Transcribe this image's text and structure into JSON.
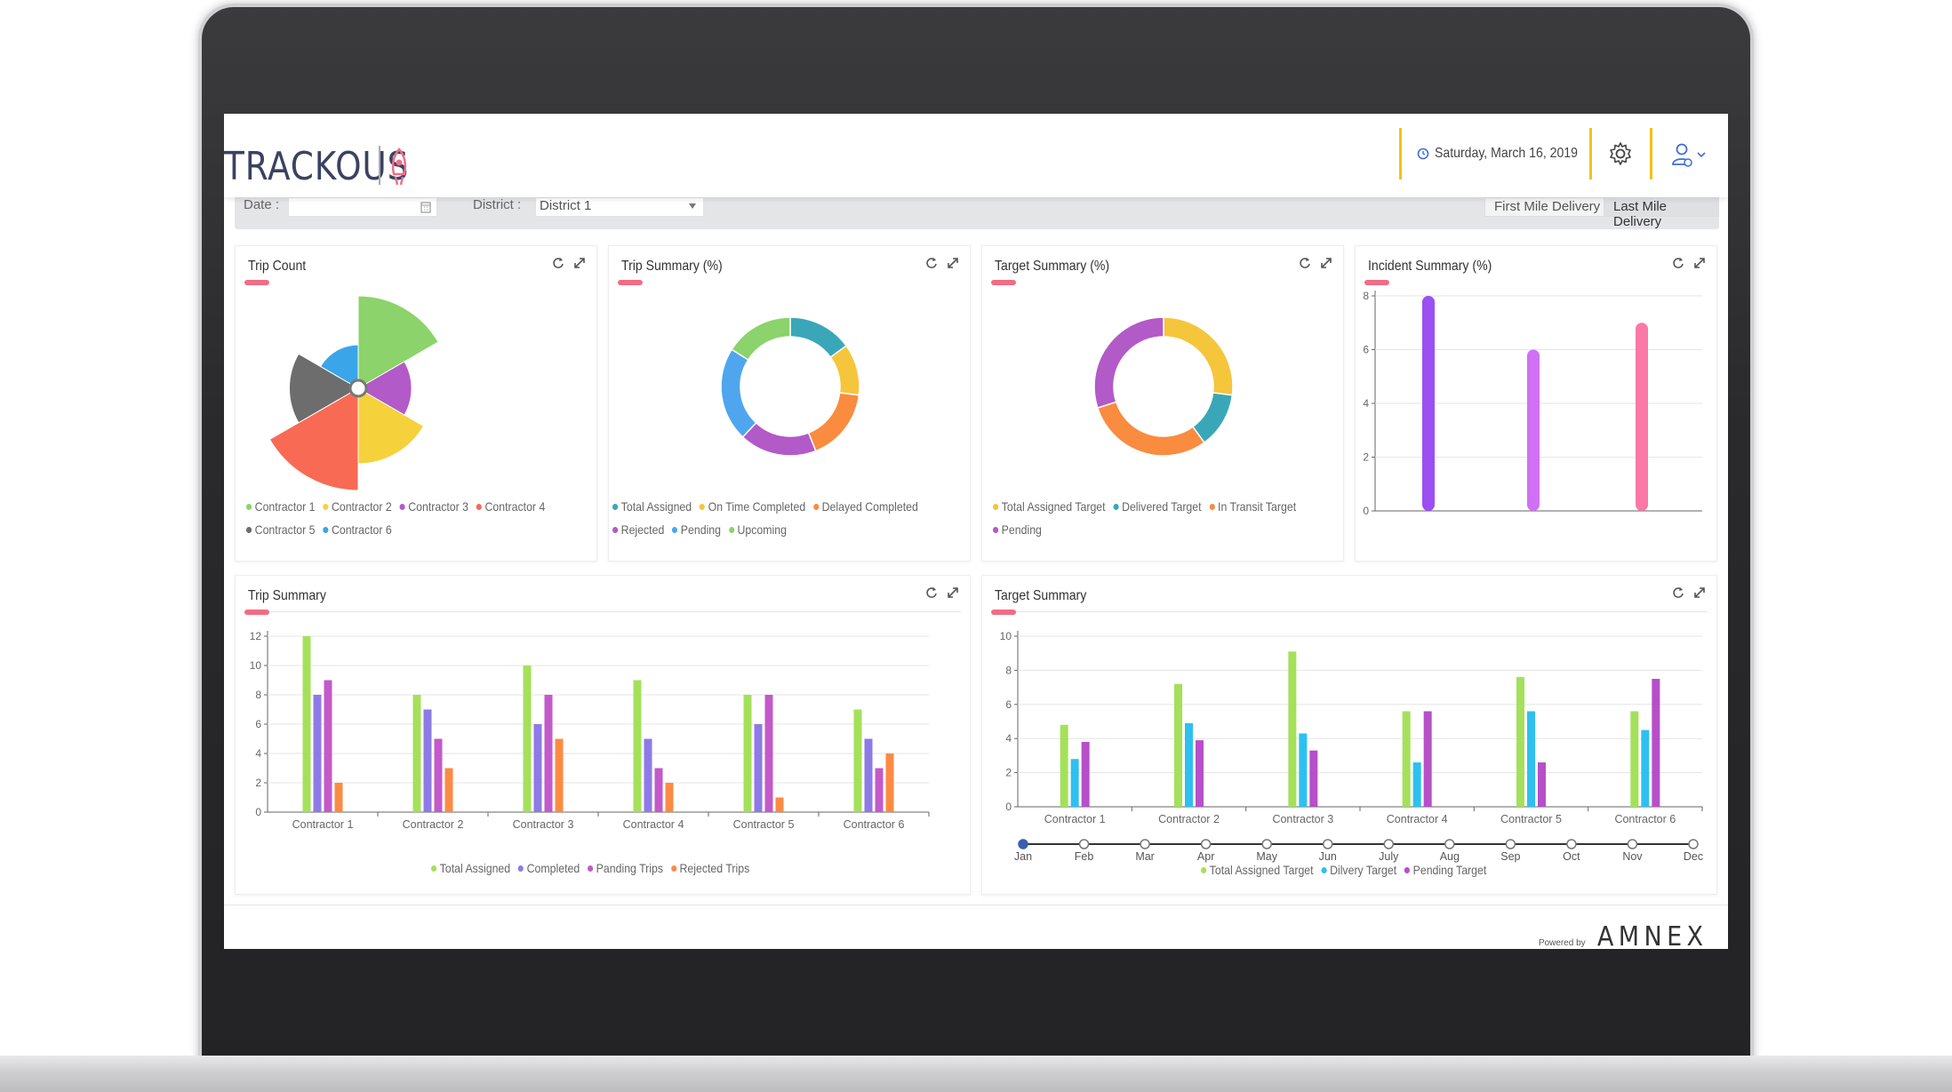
{
  "header": {
    "logo_text": "TRACKOUS",
    "date_text": "Saturday, March 16, 2019",
    "settings_icon": "gear-icon",
    "user_icon": "user-icon",
    "accent": "#f2c218"
  },
  "filters": {
    "date_label": "Date :",
    "date_value": "",
    "district_label": "District :",
    "district_value": "District 1",
    "delivery_tabs": [
      "First Mile Delivery",
      "Last Mile Delivery"
    ],
    "active_tab": "Last Mile Delivery"
  },
  "cards": {
    "trip_count": {
      "title": "Trip Count"
    },
    "trip_summary_pct": {
      "title": "Trip Summary (%)"
    },
    "target_summary_pct": {
      "title": "Target Summary (%)"
    },
    "incident_summary_pct": {
      "title": "Incident Summary (%)"
    },
    "trip_summary": {
      "title": "Trip Summary"
    },
    "target_summary": {
      "title": "Target Summary"
    }
  },
  "chart_data": [
    {
      "id": "trip_count",
      "type": "pie",
      "variant": "polar-area",
      "labels": [
        "Contractor 1",
        "Contractor 2",
        "Contractor 3",
        "Contractor 4",
        "Contractor 5",
        "Contractor 6"
      ],
      "values": [
        9,
        6,
        3,
        11,
        5,
        2
      ],
      "colors": [
        "#8bd36a",
        "#f5d13c",
        "#b25ac7",
        "#f96a55",
        "#6d6d6d",
        "#3aa5e8"
      ],
      "legend_position": "bottom"
    },
    {
      "id": "trip_summary_pct",
      "type": "pie",
      "variant": "doughnut",
      "labels": [
        "Total Assigned",
        "On Time Completed",
        "Delayed Completed",
        "Rejected",
        "Pending",
        "Upcoming"
      ],
      "values": [
        15,
        12,
        17,
        18,
        22,
        16
      ],
      "colors": [
        "#3aa7b9",
        "#f5c53c",
        "#f98c3f",
        "#b25ac7",
        "#4fa6ef",
        "#8bd36a"
      ],
      "legend_position": "bottom"
    },
    {
      "id": "target_summary_pct",
      "type": "pie",
      "variant": "doughnut",
      "labels": [
        "Total Assigned Target",
        "Delivered Target",
        "In Transit Target",
        "Pending"
      ],
      "values": [
        27,
        13,
        30,
        30
      ],
      "colors": [
        "#f5c53c",
        "#3aa7b9",
        "#f98c3f",
        "#b25ac7"
      ],
      "legend_position": "bottom"
    },
    {
      "id": "incident_summary_pct",
      "type": "bar",
      "categories": [
        "",
        "",
        ""
      ],
      "values": [
        8,
        6,
        7
      ],
      "colors": [
        "#9c4ff2",
        "#d070f4",
        "#fb78a7"
      ],
      "ylim": [
        0,
        8
      ],
      "yticks": [
        0,
        2,
        4,
        6,
        8
      ],
      "grid": true
    },
    {
      "id": "trip_summary",
      "type": "bar",
      "categories": [
        "Contractor 1",
        "Contractor 2",
        "Contractor 3",
        "Contractor 4",
        "Contractor 5",
        "Contractor 6"
      ],
      "series": [
        {
          "name": "Total Assigned",
          "color": "#a5e05a",
          "values": [
            12,
            8,
            10,
            9,
            8,
            7
          ]
        },
        {
          "name": "Completed",
          "color": "#8e7ae6",
          "values": [
            8,
            7,
            6,
            5,
            6,
            5
          ]
        },
        {
          "name": "Panding Trips",
          "color": "#c25ac9",
          "values": [
            9,
            5,
            8,
            3,
            8,
            3
          ]
        },
        {
          "name": "Rejected Trips",
          "color": "#fb8b43",
          "values": [
            2,
            3,
            5,
            2,
            1,
            4
          ]
        }
      ],
      "ylim": [
        0,
        12
      ],
      "yticks": [
        0,
        2,
        4,
        6,
        8,
        10,
        12
      ],
      "grid": true,
      "legend_position": "bottom"
    },
    {
      "id": "target_summary",
      "type": "bar",
      "categories": [
        "Contractor 1",
        "Contractor 2",
        "Contractor 3",
        "Contractor 4",
        "Contractor 5",
        "Contractor 6"
      ],
      "series": [
        {
          "name": "Total Assigned Target",
          "color": "#a5e05a",
          "values": [
            4.8,
            7.2,
            9.1,
            5.6,
            7.6,
            5.6
          ]
        },
        {
          "name": "Dilvery Target",
          "color": "#2ec0f0",
          "values": [
            2.8,
            4.9,
            4.3,
            2.6,
            5.6,
            4.5
          ]
        },
        {
          "name": "Pending Target",
          "color": "#b64fc8",
          "values": [
            3.8,
            3.9,
            3.3,
            5.6,
            2.6,
            7.5
          ]
        }
      ],
      "ylim": [
        0,
        10
      ],
      "yticks": [
        0,
        2,
        4,
        6,
        8,
        10
      ],
      "grid": true,
      "timeline": [
        "Jan",
        "Feb",
        "Mar",
        "Apr",
        "May",
        "Jun",
        "July",
        "Aug",
        "Sep",
        "Oct",
        "Nov",
        "Dec"
      ],
      "timeline_selected": "Jan",
      "legend_position": "bottom"
    }
  ],
  "footer": {
    "powered_by": "Powered by",
    "brand": "AMNEX"
  }
}
